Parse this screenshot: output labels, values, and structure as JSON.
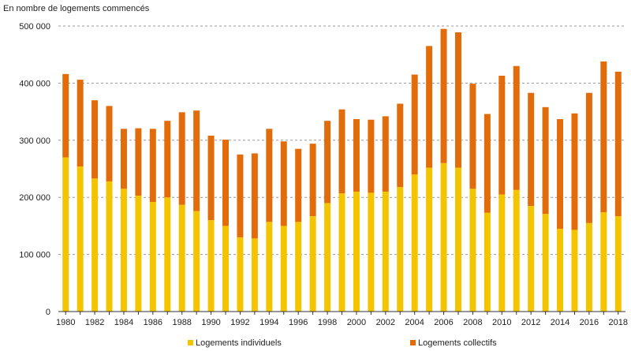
{
  "chart_data": {
    "type": "bar",
    "stacked": true,
    "ylabel": "En nombre de logements commencés",
    "ylim": [
      0,
      500000
    ],
    "yticks": [
      0,
      100000,
      200000,
      300000,
      400000,
      500000
    ],
    "ytick_labels": [
      "0",
      "100 000",
      "200 000",
      "300 000",
      "400 000",
      "500 000"
    ],
    "grid": "horizontal dashed",
    "legend": "bottom",
    "categories": [
      "1980",
      "1981",
      "1982",
      "1983",
      "1984",
      "1985",
      "1986",
      "1987",
      "1988",
      "1989",
      "1990",
      "1991",
      "1992",
      "1993",
      "1994",
      "1995",
      "1996",
      "1997",
      "1998",
      "1999",
      "2000",
      "2001",
      "2002",
      "2003",
      "2004",
      "2005",
      "2006",
      "2007",
      "2008",
      "2009",
      "2010",
      "2011",
      "2012",
      "2013",
      "2014",
      "2015",
      "2016",
      "2017",
      "2018"
    ],
    "xtick_labels": [
      "1980",
      "1982",
      "1984",
      "1986",
      "1988",
      "1990",
      "1992",
      "1994",
      "1996",
      "1998",
      "2000",
      "2002",
      "2004",
      "2006",
      "2008",
      "2010",
      "2012",
      "2014",
      "2016",
      "2018"
    ],
    "series": [
      {
        "name": "Logements individuels",
        "color": "#F5C400",
        "values": [
          270000,
          254000,
          233000,
          228000,
          215000,
          203000,
          192000,
          200000,
          187000,
          176000,
          160000,
          150000,
          130000,
          128000,
          157000,
          150000,
          157000,
          167000,
          190000,
          207000,
          210000,
          208000,
          210000,
          218000,
          240000,
          252000,
          260000,
          252000,
          215000,
          173000,
          205000,
          213000,
          185000,
          171000,
          145000,
          143000,
          155000,
          174000,
          167000
        ]
      },
      {
        "name": "Logements collectifs",
        "color": "#E36C0A",
        "values": [
          146000,
          152000,
          137000,
          132000,
          105000,
          118000,
          128000,
          134000,
          162000,
          176000,
          148000,
          151000,
          145000,
          149000,
          163000,
          148000,
          128000,
          127000,
          144000,
          147000,
          127000,
          128000,
          132000,
          146000,
          175000,
          213000,
          235000,
          237000,
          184000,
          173000,
          208000,
          217000,
          198000,
          187000,
          192000,
          204000,
          228000,
          264000,
          253000
        ]
      }
    ]
  }
}
